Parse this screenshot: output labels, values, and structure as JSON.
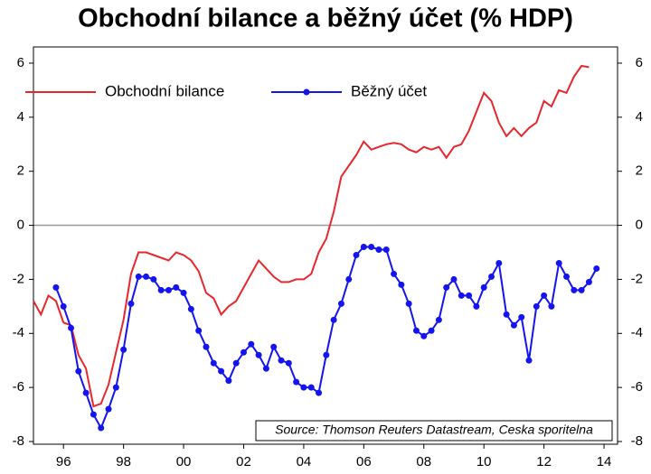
{
  "chart_data": {
    "type": "line",
    "title": "Obchodní bilance a běžný účet (% HDP)",
    "annotation": "Source: Thomson Reuters Datastream, Ceska sporitelna",
    "legend": "top-left",
    "x": [
      1995.0,
      1995.25,
      1995.5,
      1995.75,
      1996.0,
      1996.25,
      1996.5,
      1996.75,
      1997.0,
      1997.25,
      1997.5,
      1997.75,
      1998.0,
      1998.25,
      1998.5,
      1998.75,
      1999.0,
      1999.25,
      1999.5,
      1999.75,
      2000.0,
      2000.25,
      2000.5,
      2000.75,
      2001.0,
      2001.25,
      2001.5,
      2001.75,
      2002.0,
      2002.25,
      2002.5,
      2002.75,
      2003.0,
      2003.25,
      2003.5,
      2003.75,
      2004.0,
      2004.25,
      2004.5,
      2004.75,
      2005.0,
      2005.25,
      2005.5,
      2005.75,
      2006.0,
      2006.25,
      2006.5,
      2006.75,
      2007.0,
      2007.25,
      2007.5,
      2007.75,
      2008.0,
      2008.25,
      2008.5,
      2008.75,
      2009.0,
      2009.25,
      2009.5,
      2009.75,
      2010.0,
      2010.25,
      2010.5,
      2010.75,
      2011.0,
      2011.25,
      2011.5,
      2011.75,
      2012.0,
      2012.25,
      2012.5,
      2012.75,
      2013.0,
      2013.25,
      2013.5,
      2013.75
    ],
    "series": [
      {
        "name": "Obchodní bilance",
        "color": "#e8262d",
        "markers": false,
        "values": [
          -2.8,
          -3.3,
          -2.6,
          -2.8,
          -3.6,
          -3.7,
          -4.8,
          -5.3,
          -6.7,
          -6.6,
          -5.9,
          -4.7,
          -3.5,
          -1.8,
          -1.0,
          -1.0,
          -1.1,
          -1.2,
          -1.3,
          -1.0,
          -1.1,
          -1.3,
          -1.7,
          -2.5,
          -2.7,
          -3.3,
          -3.0,
          -2.8,
          -2.3,
          -1.8,
          -1.3,
          -1.6,
          -1.9,
          -2.1,
          -2.1,
          -2.0,
          -2.0,
          -1.8,
          -1.0,
          -0.5,
          0.5,
          1.8,
          2.2,
          2.6,
          3.1,
          2.8,
          2.9,
          3.0,
          3.05,
          3.0,
          2.8,
          2.7,
          2.9,
          2.8,
          2.9,
          2.5,
          2.9,
          3.0,
          3.5,
          4.2,
          4.9,
          4.6,
          3.8,
          3.3,
          3.6,
          3.3,
          3.6,
          3.8,
          4.6,
          4.4,
          5.0,
          4.9,
          5.5,
          5.9,
          5.85,
          null
        ]
      },
      {
        "name": "Běžný účet",
        "color": "#1414f0",
        "markers": true,
        "values": [
          null,
          null,
          null,
          -2.3,
          -3.0,
          -3.8,
          -5.4,
          -6.2,
          -7.0,
          -7.5,
          -6.8,
          -6.0,
          -4.6,
          -2.9,
          -1.9,
          -1.9,
          -2.0,
          -2.4,
          -2.4,
          -2.3,
          -2.5,
          -3.1,
          -3.9,
          -4.5,
          -5.1,
          -5.4,
          -5.75,
          -5.1,
          -4.7,
          -4.4,
          -4.8,
          -5.3,
          -4.5,
          -5.0,
          -5.1,
          -5.8,
          -6.0,
          -6.0,
          -6.2,
          -4.8,
          -3.5,
          -2.9,
          -2.0,
          -1.1,
          -0.8,
          -0.8,
          -0.9,
          -0.9,
          -1.8,
          -2.2,
          -2.9,
          -3.9,
          -4.1,
          -3.9,
          -3.5,
          -2.3,
          -2.0,
          -2.6,
          -2.6,
          -3.0,
          -2.3,
          -1.9,
          -1.4,
          -3.3,
          -3.7,
          -3.4,
          -5.0,
          -3.0,
          -2.6,
          -3.0,
          -1.4,
          -1.9,
          -2.4,
          -2.4,
          -2.1,
          -1.6
        ]
      }
    ],
    "xlim": [
      1995.0,
      2014.45
    ],
    "xticks": [
      {
        "value": 1996,
        "label": "96"
      },
      {
        "value": 1998,
        "label": "98"
      },
      {
        "value": 2000,
        "label": "00"
      },
      {
        "value": 2002,
        "label": "02"
      },
      {
        "value": 2004,
        "label": "04"
      },
      {
        "value": 2006,
        "label": "06"
      },
      {
        "value": 2008,
        "label": "08"
      },
      {
        "value": 2010,
        "label": "10"
      },
      {
        "value": 2012,
        "label": "12"
      },
      {
        "value": 2014,
        "label": "14"
      }
    ],
    "ylim": [
      -8.1,
      6.6
    ],
    "yticks": [
      6,
      4,
      2,
      0,
      -2,
      -4,
      -6,
      -8
    ],
    "zero_line": true
  }
}
